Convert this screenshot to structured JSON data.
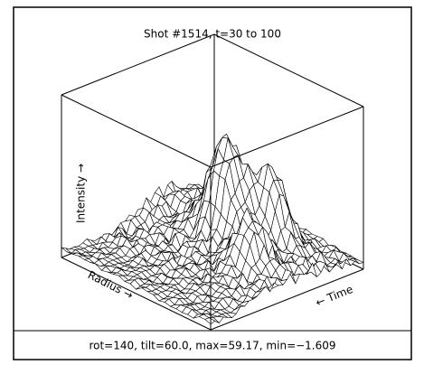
{
  "title": "Shot #1514, t=30 to 100",
  "axes": {
    "z": "Intensity →",
    "x": "Radius →",
    "y": "← Time"
  },
  "caption": "rot=140, tilt=60.0, max=59.17, min=−1.609"
}
